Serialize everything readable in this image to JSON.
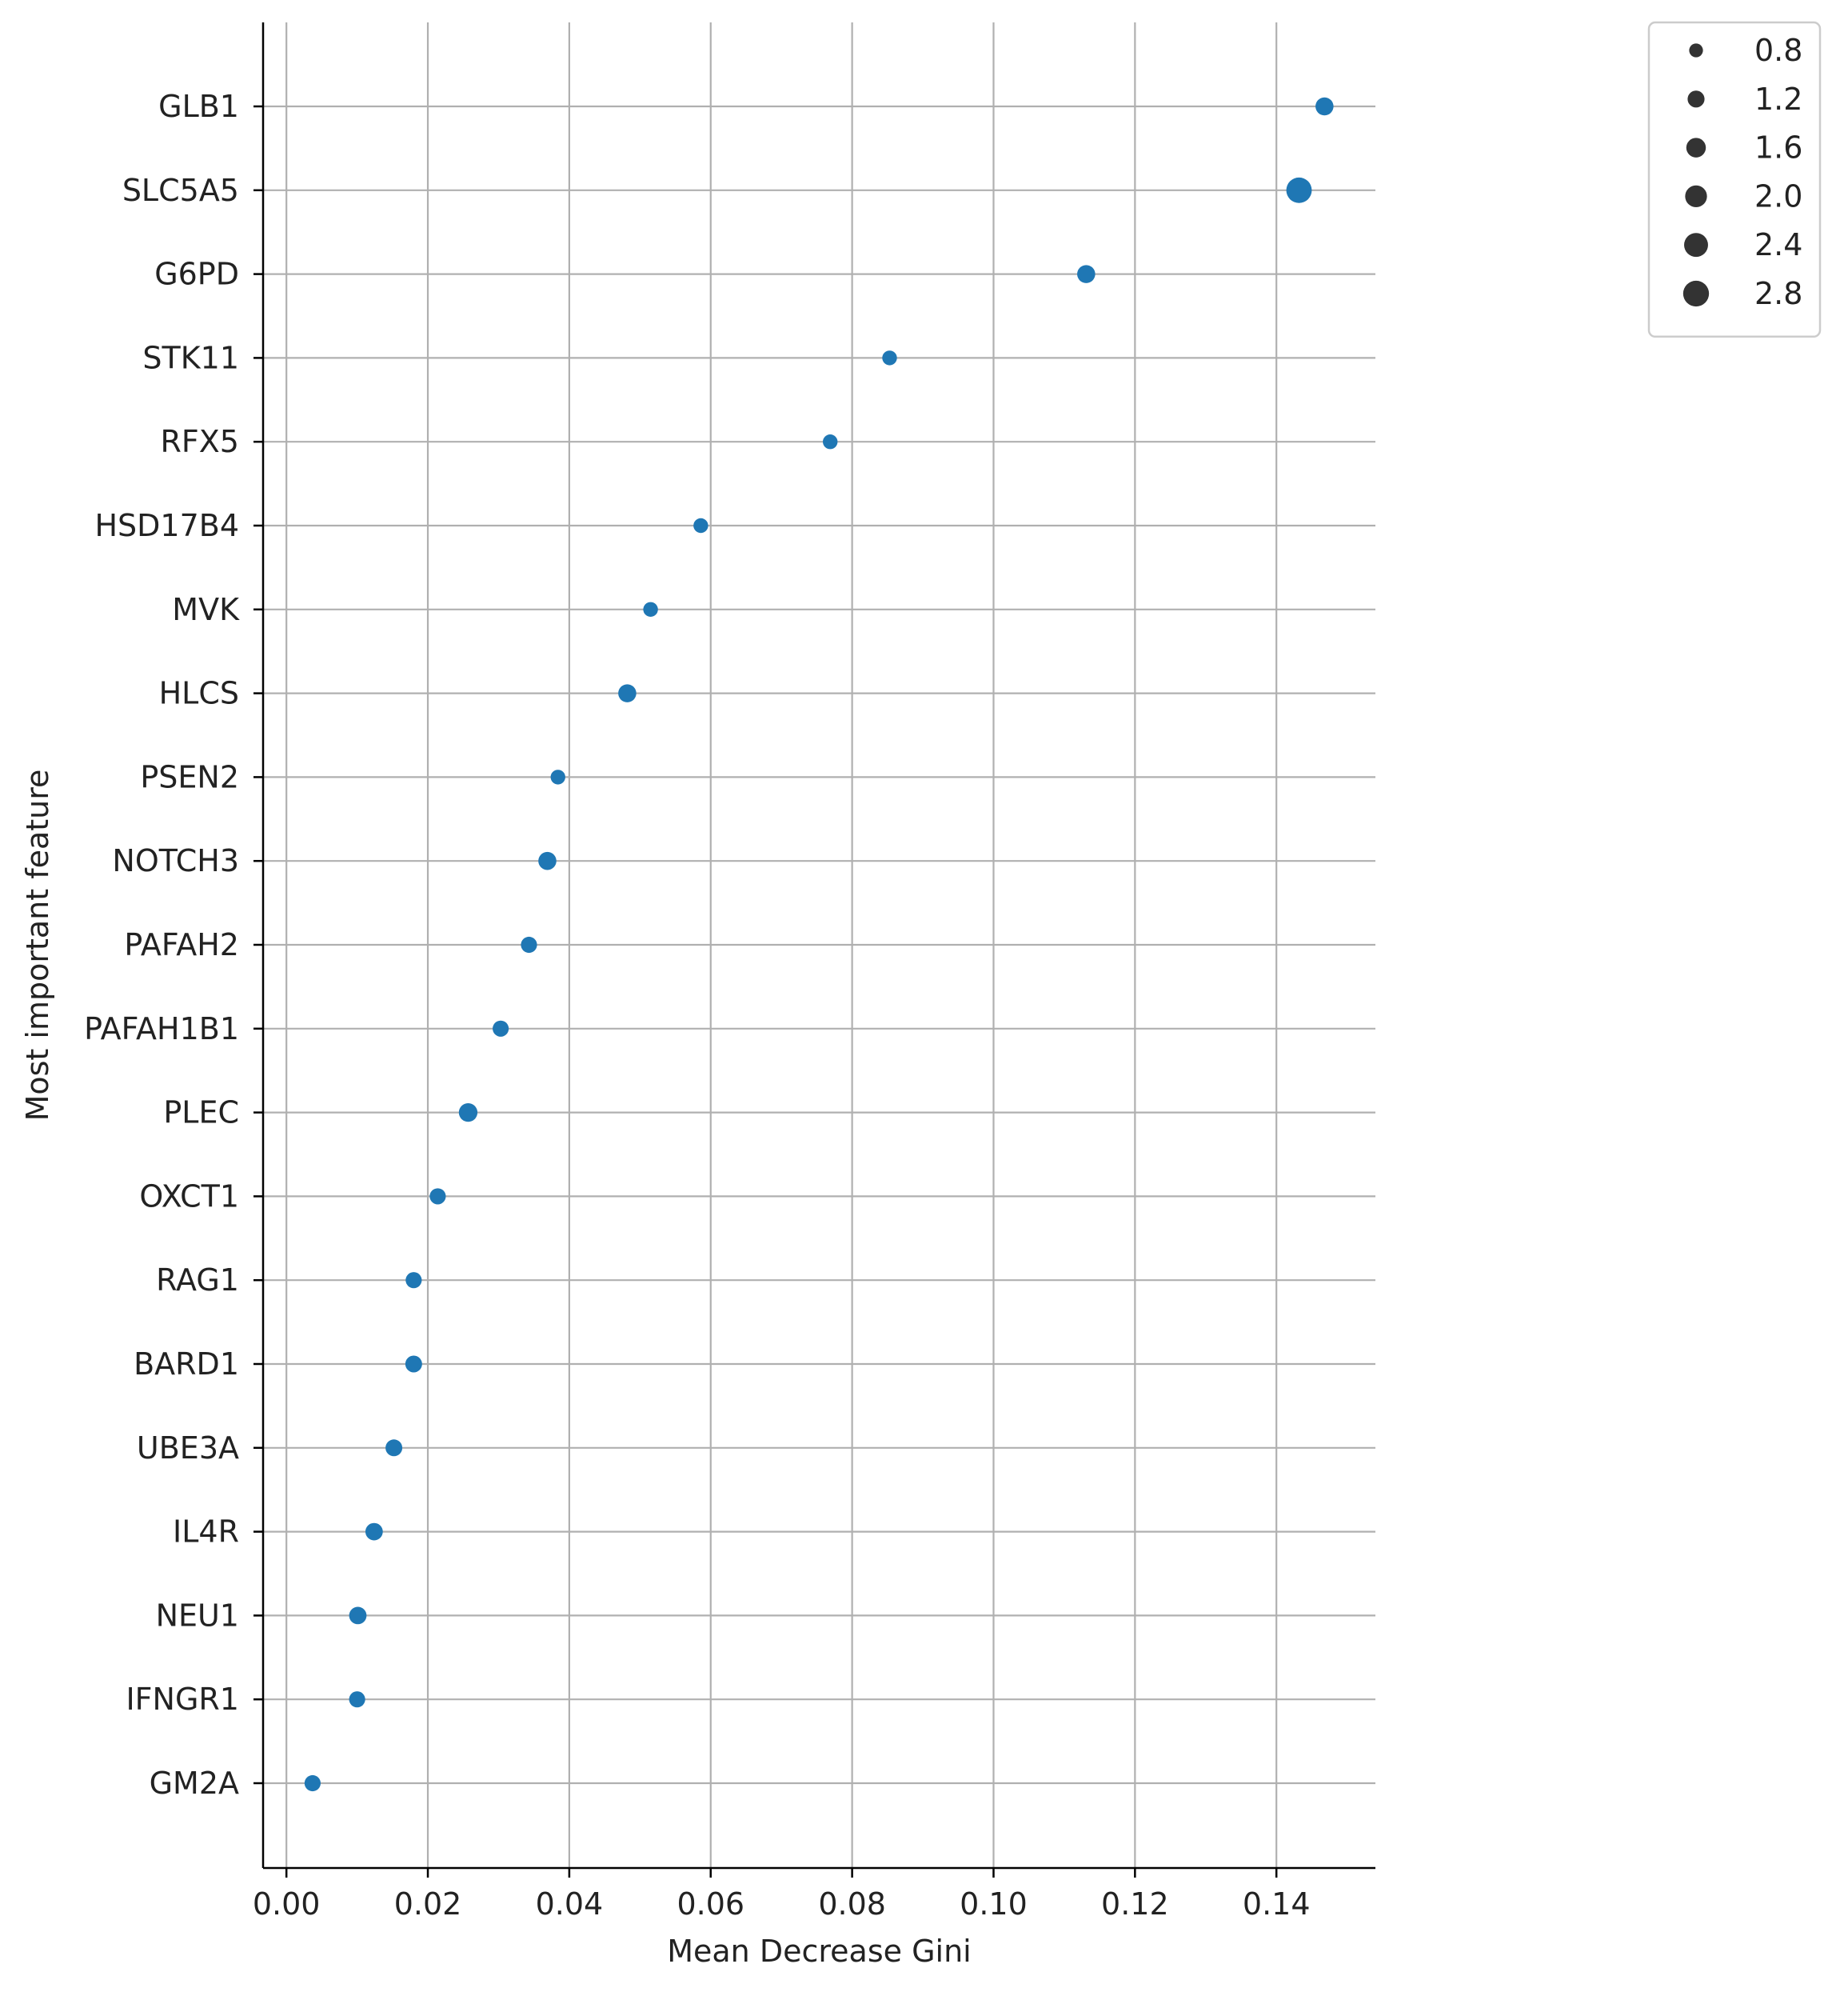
{
  "chart_data": {
    "type": "scatter",
    "xlabel": "Mean Decrease Gini",
    "ylabel": "Most important feature",
    "xlim": [
      -0.0033,
      0.154
    ],
    "xticks": [
      "0.00",
      "0.02",
      "0.04",
      "0.06",
      "0.08",
      "0.10",
      "0.12",
      "0.14"
    ],
    "xtick_values": [
      0.0,
      0.02,
      0.04,
      0.06,
      0.08,
      0.1,
      0.12,
      0.14
    ],
    "grid": true,
    "color": "#1f77b4",
    "categories": [
      "GLB1",
      "SLC5A5",
      "G6PD",
      "STK11",
      "RFX5",
      "HSD17B4",
      "MVK",
      "HLCS",
      "PSEN2",
      "NOTCH3",
      "PAFAH2",
      "PAFAH1B1",
      "PLEC",
      "OXCT1",
      "RAG1",
      "BARD1",
      "UBE3A",
      "IL4R",
      "NEU1",
      "IFNGR1",
      "GM2A"
    ],
    "values": [
      0.1468,
      0.1432,
      0.1131,
      0.0853,
      0.0769,
      0.0586,
      0.0515,
      0.0482,
      0.0384,
      0.0369,
      0.0343,
      0.0303,
      0.0257,
      0.0214,
      0.018,
      0.018,
      0.0152,
      0.0124,
      0.0101,
      0.01,
      0.0037
    ],
    "sizes": [
      1.5,
      3.0,
      1.5,
      1.0,
      1.0,
      1.0,
      1.0,
      1.5,
      1.0,
      1.5,
      1.2,
      1.2,
      1.6,
      1.2,
      1.2,
      1.3,
      1.3,
      1.4,
      1.4,
      1.2,
      1.2
    ],
    "legend": {
      "placement": "upper right, outside plot",
      "entries": [
        "0.8",
        "1.2",
        "1.6",
        "2.0",
        "2.4",
        "2.8"
      ],
      "entry_sizes": [
        0.8,
        1.2,
        1.6,
        2.0,
        2.4,
        2.8
      ],
      "marker_color": "#333333"
    }
  }
}
